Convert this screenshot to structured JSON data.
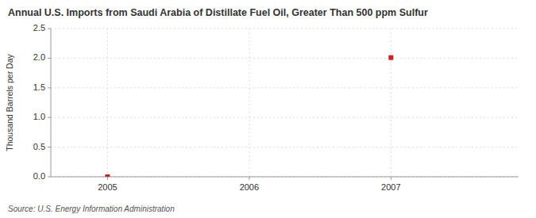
{
  "chart_data": {
    "type": "scatter",
    "title": "Annual U.S. Imports from Saudi Arabia of Distillate Fuel Oil, Greater Than 500 ppm Sulfur",
    "y_label": "Thousand Barrels per Day",
    "source": "Source: U.S. Energy Information Administration",
    "x": [
      2005,
      2007
    ],
    "values": [
      0.0,
      2.01
    ],
    "color": "#cc2222",
    "marker": "square",
    "xlim": [
      2004.6,
      2007.9
    ],
    "xticks": [
      2005,
      2006,
      2007
    ],
    "ylim": [
      0.0,
      2.5
    ],
    "yticks": [
      {
        "value": 0.0,
        "label": "0.0"
      },
      0.5,
      {
        "value": 1.0,
        "label": "1.0"
      },
      1.5,
      {
        "value": 2.0,
        "label": "2.0"
      },
      2.5
    ],
    "grid": true
  }
}
